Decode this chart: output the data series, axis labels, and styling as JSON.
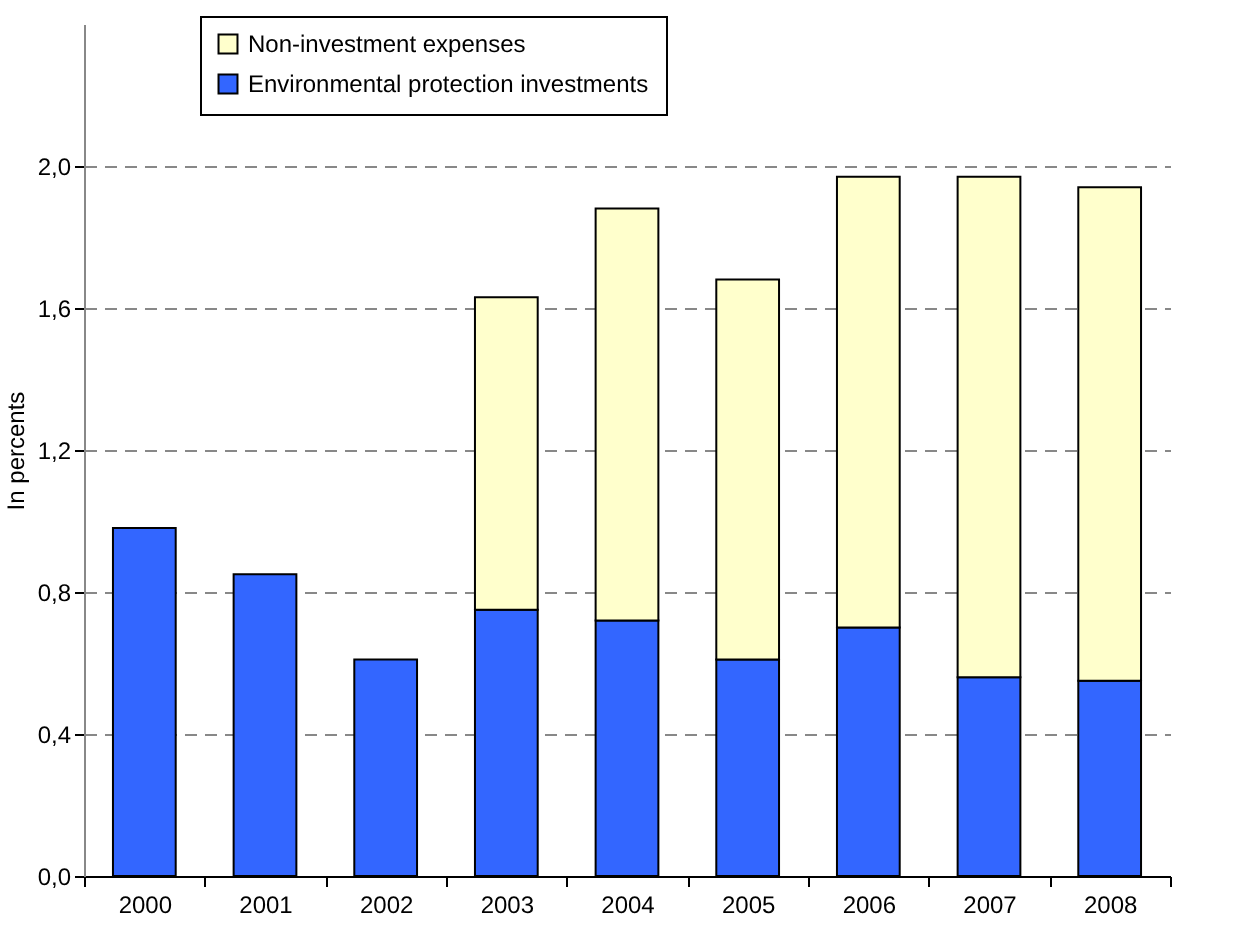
{
  "chart_data": {
    "type": "bar",
    "ylabel": "In percents",
    "stacked": true,
    "categories": [
      "2000",
      "2001",
      "2002",
      "2003",
      "2004",
      "2005",
      "2006",
      "2007",
      "2008"
    ],
    "series": [
      {
        "name": "Environmental protection investments",
        "color": "#3366ff",
        "values": [
          0.98,
          0.85,
          0.61,
          0.75,
          0.72,
          0.61,
          0.7,
          0.56,
          0.55
        ]
      },
      {
        "name": "Non-investment expenses",
        "color": "#ffffcc",
        "values": [
          null,
          null,
          null,
          0.88,
          1.16,
          1.07,
          1.27,
          1.41,
          1.39
        ]
      }
    ],
    "ylim": [
      0,
      2.4
    ],
    "yticks": [
      {
        "value": 0,
        "label": "0,0"
      },
      {
        "value": 0.4,
        "label": "0,4"
      },
      {
        "value": 0.8,
        "label": "0,8"
      },
      {
        "value": 1.2,
        "label": "1,2"
      },
      {
        "value": 1.6,
        "label": "1,6"
      },
      {
        "value": 2,
        "label": "2,0"
      }
    ],
    "grid": "y",
    "legend": "top"
  }
}
